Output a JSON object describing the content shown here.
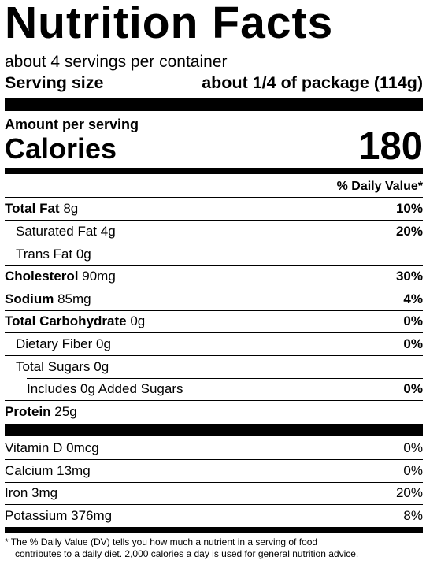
{
  "title": "Nutrition Facts",
  "servings_per_container": "about 4 servings per container",
  "serving_size": {
    "label": "Serving size",
    "value": "about 1/4 of package (114g)"
  },
  "amount_per_serving": "Amount per serving",
  "calories": {
    "label": "Calories",
    "value": "180"
  },
  "daily_value_header": "% Daily Value*",
  "nutrients": [
    {
      "bold_name": "Total Fat",
      "amount": "8g",
      "dv": "10%"
    },
    {
      "name": "Saturated Fat",
      "amount": "4g",
      "dv": "20%"
    },
    {
      "name": "Trans Fat",
      "amount": "0g",
      "dv": ""
    },
    {
      "bold_name": "Cholesterol",
      "amount": "90mg",
      "dv": "30%"
    },
    {
      "bold_name": "Sodium",
      "amount": "85mg",
      "dv": "4%"
    },
    {
      "bold_name": "Total Carbohydrate",
      "amount": "0g",
      "dv": "0%"
    },
    {
      "name": "Dietary Fiber",
      "amount": "0g",
      "dv": "0%"
    },
    {
      "name": "Total Sugars",
      "amount": "0g",
      "dv": ""
    },
    {
      "name": "Includes 0g Added Sugars",
      "amount": "",
      "dv": "0%"
    },
    {
      "bold_name": "Protein",
      "amount": "25g",
      "dv": ""
    }
  ],
  "vitamins": [
    {
      "name": "Vitamin D",
      "amount": "0mcg",
      "dv": "0%"
    },
    {
      "name": "Calcium",
      "amount": "13mg",
      "dv": "0%"
    },
    {
      "name": "Iron",
      "amount": "3mg",
      "dv": "20%"
    },
    {
      "name": "Potassium",
      "amount": "376mg",
      "dv": "8%"
    }
  ],
  "footnote": {
    "line1": "* The % Daily Value (DV) tells you how much a nutrient in a serving of food",
    "line2": "contributes to a daily diet. 2,000 calories a day is used for general nutrition advice."
  }
}
